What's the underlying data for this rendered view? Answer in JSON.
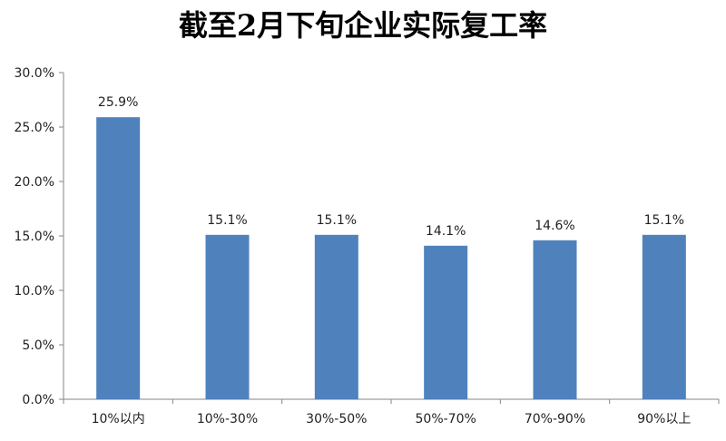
{
  "chart_data": {
    "type": "bar",
    "title": "截至2月下旬企业实际复工率",
    "categories": [
      "10%以内",
      "10%-30%",
      "30%-50%",
      "50%-70%",
      "70%-90%",
      "90%以上"
    ],
    "values": [
      25.9,
      15.1,
      15.1,
      14.1,
      14.6,
      15.1
    ],
    "data_labels": [
      "25.9%",
      "15.1%",
      "15.1%",
      "14.1%",
      "14.6%",
      "15.1%"
    ],
    "xlabel": "",
    "ylabel": "",
    "ylim": [
      0,
      30
    ],
    "y_ticks": [
      0,
      5,
      10,
      15,
      20,
      25,
      30
    ],
    "y_tick_labels": [
      "0.0%",
      "5.0%",
      "10.0%",
      "15.0%",
      "20.0%",
      "25.0%",
      "30.0%"
    ],
    "grid": false,
    "legend": "none",
    "bar_color": "#4F81BD"
  }
}
